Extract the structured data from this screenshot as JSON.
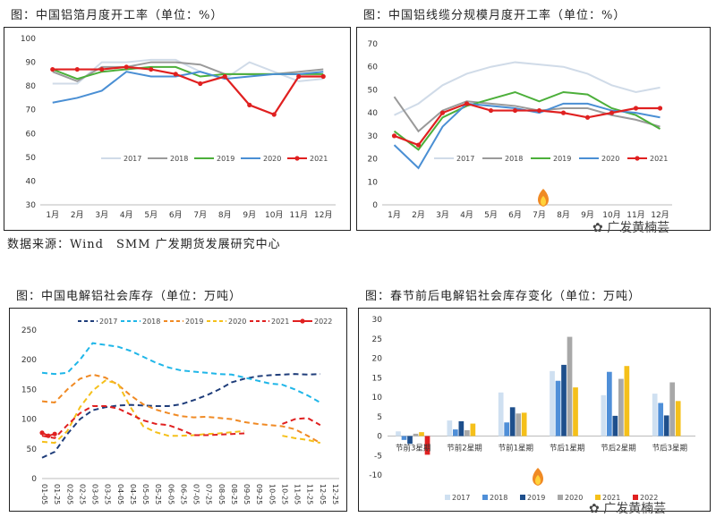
{
  "source_text": "数据来源：Wind　SMM 广发期货发展研究中心",
  "watermark": "广发黄楠芸",
  "colors": {
    "2017": "#d0dbe8",
    "2018": "#9a9a9a",
    "2019": "#4caf3a",
    "2020": "#4a8fd4",
    "2021": "#e02020"
  },
  "chart_data": [
    {
      "id": "foil",
      "type": "line",
      "title": "图：中国铝箔月度开工率（单位：%）",
      "categories": [
        "1月",
        "2月",
        "3月",
        "4月",
        "5月",
        "6月",
        "7月",
        "8月",
        "9月",
        "10月",
        "11月",
        "12月"
      ],
      "ylim": [
        30,
        100
      ],
      "yticks": [
        30,
        40,
        50,
        60,
        70,
        80,
        90,
        100
      ],
      "grid": false,
      "legend_position": "bottom-right",
      "series": [
        {
          "name": "2017",
          "color": "#d0dbe8",
          "values": [
            81,
            81,
            90,
            90,
            91,
            91,
            86,
            83,
            90,
            86,
            82,
            83
          ]
        },
        {
          "name": "2018",
          "color": "#9a9a9a",
          "values": [
            86,
            82,
            88,
            88,
            90,
            90,
            89,
            85,
            85,
            85,
            86,
            87
          ]
        },
        {
          "name": "2019",
          "color": "#4caf3a",
          "values": [
            87,
            83,
            86,
            87,
            88,
            88,
            84,
            85,
            85,
            85,
            85,
            85
          ]
        },
        {
          "name": "2020",
          "color": "#4a8fd4",
          "values": [
            73,
            75,
            78,
            86,
            84,
            84,
            86,
            83,
            84,
            85,
            85,
            86
          ]
        },
        {
          "name": "2021",
          "color": "#e02020",
          "marker": true,
          "values": [
            87,
            87,
            87,
            88,
            87,
            85,
            81,
            84,
            72,
            68,
            84,
            84
          ]
        }
      ]
    },
    {
      "id": "wire",
      "type": "line",
      "title": "图：中国铝线缆分规模月度开工率（单位：%）",
      "categories": [
        "1月",
        "2月",
        "3月",
        "4月",
        "5月",
        "6月",
        "7月",
        "8月",
        "9月",
        "10月",
        "11月",
        "12月"
      ],
      "ylim": [
        0,
        70
      ],
      "yticks": [
        0,
        10,
        20,
        30,
        40,
        50,
        60,
        70
      ],
      "grid": false,
      "legend_position": "bottom",
      "series": [
        {
          "name": "2017",
          "color": "#d0dbe8",
          "values": [
            39,
            44,
            52,
            57,
            60,
            62,
            61,
            60,
            57,
            52,
            49,
            51
          ]
        },
        {
          "name": "2018",
          "color": "#9a9a9a",
          "values": [
            47,
            32,
            41,
            45,
            44,
            43,
            41,
            42,
            42,
            39,
            37,
            34
          ]
        },
        {
          "name": "2019",
          "color": "#4caf3a",
          "values": [
            32,
            24,
            38,
            43,
            46,
            49,
            45,
            49,
            48,
            42,
            39,
            33
          ]
        },
        {
          "name": "2020",
          "color": "#4a8fd4",
          "values": [
            26,
            16,
            34,
            44,
            43,
            42,
            40,
            44,
            44,
            41,
            40,
            38
          ]
        },
        {
          "name": "2021",
          "color": "#e02020",
          "marker": true,
          "values": [
            30,
            26,
            40,
            44,
            41,
            41,
            41,
            40,
            38,
            40,
            42,
            42
          ]
        }
      ]
    },
    {
      "id": "stock",
      "type": "line",
      "title": "图：中国电解铝社会库存（单位：万吨）",
      "xticks": [
        "01-05",
        "01-25",
        "02-05",
        "02-25",
        "03-05",
        "03-25",
        "04-05",
        "04-25",
        "05-05",
        "05-25",
        "06-05",
        "06-25",
        "07-05",
        "07-25",
        "08-05",
        "08-25",
        "09-05",
        "09-25",
        "10-05",
        "10-25",
        "11-05",
        "11-25",
        "12-05",
        "12-25"
      ],
      "ylim": [
        0,
        250
      ],
      "yticks": [
        0,
        50,
        100,
        150,
        200,
        250
      ],
      "grid": false,
      "legend_position": "top",
      "series": [
        {
          "name": "2017",
          "color": "#1f3d7a",
          "dash": "6,4",
          "x": [
            0,
            2,
            4,
            6,
            8,
            10,
            12,
            14,
            16,
            18,
            20,
            22,
            24,
            26,
            28,
            30,
            32,
            34,
            36,
            38,
            40,
            42,
            44
          ],
          "values": [
            35,
            45,
            75,
            100,
            115,
            120,
            123,
            124,
            123,
            122,
            122,
            125,
            132,
            140,
            150,
            162,
            168,
            172,
            174,
            175,
            176,
            175,
            176
          ]
        },
        {
          "name": "2018",
          "color": "#1fb6e8",
          "dash": "6,4",
          "x": [
            0,
            2,
            4,
            6,
            8,
            10,
            12,
            14,
            16,
            18,
            20,
            22,
            24,
            26,
            28,
            30,
            32,
            34,
            36,
            38,
            40,
            42,
            44
          ],
          "values": [
            178,
            176,
            178,
            200,
            228,
            225,
            222,
            215,
            205,
            195,
            187,
            182,
            180,
            178,
            176,
            175,
            170,
            165,
            160,
            158,
            150,
            140,
            128
          ]
        },
        {
          "name": "2019",
          "color": "#f08a24",
          "dash": "6,4",
          "x": [
            0,
            2,
            4,
            6,
            8,
            10,
            12,
            14,
            16,
            18,
            20,
            22,
            24,
            26,
            28,
            30,
            32,
            34,
            36,
            38,
            40,
            42,
            44
          ],
          "values": [
            130,
            128,
            150,
            168,
            175,
            170,
            158,
            140,
            125,
            116,
            110,
            105,
            103,
            104,
            102,
            100,
            95,
            92,
            90,
            88,
            83,
            72,
            60
          ]
        },
        {
          "name": "2020",
          "color": "#f5c01a",
          "dash": "6,4",
          "x": [
            0,
            2,
            4,
            6,
            8,
            10,
            12,
            14,
            16,
            18,
            20,
            22,
            24,
            26,
            28,
            30,
            32,
            34,
            36,
            38,
            40,
            42,
            44
          ],
          "values": [
            62,
            60,
            80,
            120,
            148,
            165,
            160,
            120,
            88,
            78,
            72,
            72,
            73,
            75,
            76,
            78,
            80,
            null,
            null,
            72,
            68,
            65,
            60
          ]
        },
        {
          "name": "2021",
          "color": "#e02020",
          "dash": "6,4",
          "x": [
            0,
            2,
            4,
            6,
            8,
            10,
            12,
            14,
            16,
            18,
            20,
            22,
            24,
            26,
            28,
            30,
            32,
            34,
            36,
            38,
            40,
            42,
            44
          ],
          "values": [
            72,
            68,
            90,
            110,
            122,
            122,
            118,
            108,
            98,
            92,
            90,
            82,
            73,
            73,
            74,
            75,
            76,
            null,
            null,
            92,
            100,
            102,
            90
          ]
        },
        {
          "name": "2022",
          "color": "#e02020",
          "marker": true,
          "x": [
            0,
            1,
            2
          ],
          "values": [
            77,
            72,
            75
          ]
        }
      ]
    },
    {
      "id": "festival",
      "type": "bar",
      "title": "图：春节前后电解铝社会库存变化（单位：万吨）",
      "categories": [
        "节前3星期",
        "节前2星期",
        "节前1星期",
        "节后1星期",
        "节后2星期",
        "节后3星期"
      ],
      "ylim": [
        -10,
        30
      ],
      "yticks": [
        -10,
        -5,
        0,
        5,
        10,
        15,
        20,
        25,
        30
      ],
      "grid": false,
      "legend_position": "bottom",
      "series": [
        {
          "name": "2017",
          "color": "#cfe0f1",
          "values": [
            1.2,
            4.0,
            11.2,
            16.7,
            10.5,
            10.9
          ]
        },
        {
          "name": "2018",
          "color": "#4f8fd8",
          "values": [
            -1,
            1.7,
            3.5,
            14.2,
            16.5,
            8.5
          ]
        },
        {
          "name": "2019",
          "color": "#1e4f8c",
          "values": [
            -2,
            3.8,
            7.4,
            18.3,
            5.2,
            5.3
          ]
        },
        {
          "name": "2020",
          "color": "#a8a8a8",
          "values": [
            0.6,
            1.5,
            5.8,
            25.5,
            14.7,
            13.8
          ]
        },
        {
          "name": "2021",
          "color": "#f5c01a",
          "values": [
            1.0,
            3.2,
            6.0,
            12.5,
            18.0,
            9.0
          ]
        },
        {
          "name": "2022",
          "color": "#e02020",
          "values": [
            -4.8,
            null,
            null,
            null,
            null,
            null
          ]
        }
      ]
    }
  ]
}
